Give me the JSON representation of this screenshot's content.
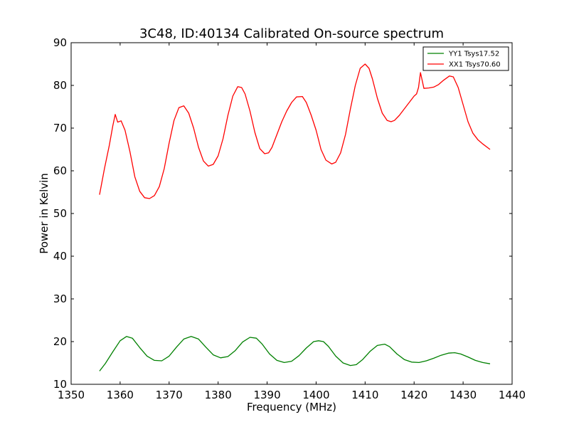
{
  "chart_data": {
    "type": "line",
    "title": "3C48, ID:40134 Calibrated On-source spectrum",
    "xlabel": "Frequency (MHz)",
    "ylabel": "Power in Kelvin",
    "xlim": [
      1350,
      1440
    ],
    "ylim": [
      10,
      90
    ],
    "xticks": [
      "1350",
      "1360",
      "1370",
      "1380",
      "1390",
      "1400",
      "1410",
      "1420",
      "1430",
      "1440"
    ],
    "yticks": [
      "10",
      "20",
      "30",
      "40",
      "50",
      "60",
      "70",
      "80",
      "90"
    ],
    "grid": false,
    "legend_position": "top-right",
    "series": [
      {
        "name": "YY1 Tsys17.52",
        "color": "#008000",
        "x": [
          1355.8,
          1357,
          1358.5,
          1360,
          1361.3,
          1362.5,
          1364,
          1365.5,
          1367,
          1368.5,
          1370,
          1371.5,
          1373,
          1374.5,
          1376,
          1377.5,
          1379,
          1380.5,
          1382,
          1383.5,
          1385,
          1386.5,
          1387.8,
          1389,
          1390.5,
          1392,
          1393.5,
          1395,
          1396.5,
          1398,
          1399.5,
          1400.5,
          1401.5,
          1402.5,
          1404,
          1405.5,
          1407,
          1408.2,
          1409.5,
          1411,
          1412.5,
          1414,
          1415,
          1416.5,
          1418,
          1419.5,
          1421,
          1422.5,
          1424,
          1425.5,
          1427,
          1428.3,
          1429.5,
          1431,
          1432.5,
          1434,
          1435.5
        ],
        "y": [
          13.1,
          14.9,
          17.6,
          20.2,
          21.2,
          20.8,
          18.6,
          16.6,
          15.6,
          15.5,
          16.6,
          18.7,
          20.6,
          21.2,
          20.6,
          18.7,
          16.9,
          16.2,
          16.5,
          17.9,
          19.9,
          21.0,
          20.8,
          19.4,
          17.1,
          15.6,
          15.1,
          15.4,
          16.7,
          18.5,
          20.0,
          20.2,
          20.0,
          18.9,
          16.6,
          15.0,
          14.4,
          14.6,
          15.8,
          17.7,
          19.1,
          19.4,
          18.8,
          17.1,
          15.8,
          15.2,
          15.1,
          15.5,
          16.1,
          16.8,
          17.3,
          17.4,
          17.1,
          16.4,
          15.6,
          15.1,
          14.8
        ]
      },
      {
        "name": "XX1 Tsys70.60",
        "color": "#ff0000",
        "x": [
          1355.8,
          1356.8,
          1357.8,
          1358.5,
          1359,
          1359.5,
          1360.2,
          1361,
          1362,
          1363,
          1364,
          1365,
          1366,
          1367,
          1368,
          1369,
          1370,
          1371,
          1372,
          1373,
          1374,
          1375,
          1376,
          1377,
          1378,
          1379,
          1380,
          1381,
          1382,
          1383,
          1384,
          1384.8,
          1385.5,
          1386.5,
          1387.5,
          1388.5,
          1389.5,
          1390.3,
          1391,
          1392,
          1393,
          1394,
          1395,
          1396,
          1397.2,
          1398,
          1399,
          1400,
          1401,
          1402,
          1403.2,
          1404,
          1405,
          1406,
          1407,
          1408,
          1409,
          1410,
          1410.8,
          1411.5,
          1412.5,
          1413.5,
          1414.5,
          1415.3,
          1416,
          1417,
          1418,
          1419,
          1420,
          1420.5,
          1420.9,
          1421.3,
          1422,
          1423,
          1424,
          1425,
          1426,
          1427.2,
          1428,
          1429,
          1430,
          1431,
          1432,
          1433,
          1434,
          1435.5
        ],
        "y": [
          54.4,
          60.5,
          66.0,
          70.5,
          73.2,
          71.4,
          71.7,
          69.5,
          64.5,
          58.6,
          55.2,
          53.7,
          53.5,
          54.2,
          56.3,
          60.5,
          66.5,
          71.8,
          74.8,
          75.2,
          73.5,
          70.0,
          65.5,
          62.3,
          61.1,
          61.5,
          63.5,
          67.5,
          73.0,
          77.5,
          79.7,
          79.5,
          78.0,
          74.0,
          69.0,
          65.2,
          64.0,
          64.2,
          65.5,
          68.5,
          71.5,
          74.0,
          76.0,
          77.3,
          77.4,
          76.0,
          73.0,
          69.5,
          65.0,
          62.5,
          61.6,
          62.0,
          64.2,
          68.5,
          74.5,
          80.0,
          84.0,
          85.0,
          84.0,
          81.5,
          77.0,
          73.5,
          71.8,
          71.5,
          71.8,
          73.0,
          74.5,
          76.0,
          77.5,
          78.0,
          79.5,
          83.0,
          79.3,
          79.4,
          79.6,
          80.2,
          81.2,
          82.2,
          82.0,
          79.5,
          75.5,
          71.5,
          68.8,
          67.3,
          66.3,
          65.0
        ]
      }
    ]
  }
}
